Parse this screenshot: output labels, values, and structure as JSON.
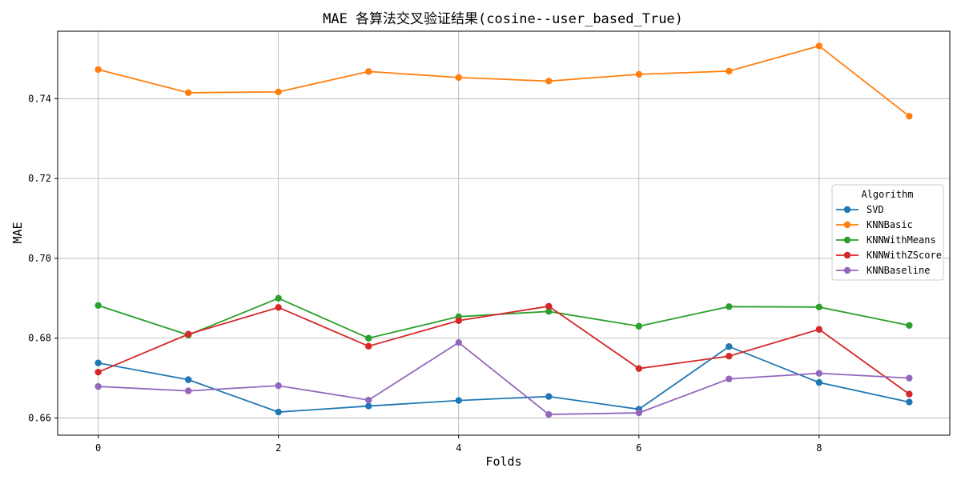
{
  "chart_data": {
    "type": "line",
    "title": "MAE 各算法交叉验证结果(cosine--user_based_True)",
    "xlabel": "Folds",
    "ylabel": "MAE",
    "x": [
      0,
      1,
      2,
      3,
      4,
      5,
      6,
      7,
      8,
      9
    ],
    "xlim": [
      -0.45,
      9.45
    ],
    "ylim": [
      0.6557,
      0.7569
    ],
    "xticks": [
      0,
      2,
      4,
      6,
      8
    ],
    "yticks": [
      0.66,
      0.68,
      0.7,
      0.72,
      0.74
    ],
    "ytick_labels": [
      "0.66",
      "0.68",
      "0.70",
      "0.72",
      "0.74"
    ],
    "grid": true,
    "legend": {
      "title": "Algorithm",
      "position": "center-right"
    },
    "series": [
      {
        "name": "SVD",
        "color": "#1f77b4",
        "values": [
          0.6738,
          0.6696,
          0.6615,
          0.663,
          0.6644,
          0.6654,
          0.6622,
          0.6779,
          0.6689,
          0.664
        ]
      },
      {
        "name": "KNNBasic",
        "color": "#ff7f0e",
        "values": [
          0.7473,
          0.7415,
          0.7417,
          0.7468,
          0.7453,
          0.7444,
          0.7461,
          0.7469,
          0.7532,
          0.7356
        ]
      },
      {
        "name": "KNNWithMeans",
        "color": "#2ca02c",
        "values": [
          0.6882,
          0.6808,
          0.69,
          0.68,
          0.6854,
          0.6867,
          0.683,
          0.6879,
          0.6878,
          0.6832
        ]
      },
      {
        "name": "KNNWithZScore",
        "color": "#d62728",
        "values": [
          0.6715,
          0.681,
          0.6877,
          0.678,
          0.6844,
          0.688,
          0.6724,
          0.6755,
          0.6822,
          0.666
        ]
      },
      {
        "name": "KNNBaseline",
        "color": "#9467bd",
        "values": [
          0.6679,
          0.6668,
          0.6681,
          0.6645,
          0.6789,
          0.6609,
          0.6613,
          0.6698,
          0.6712,
          0.67
        ]
      }
    ]
  }
}
